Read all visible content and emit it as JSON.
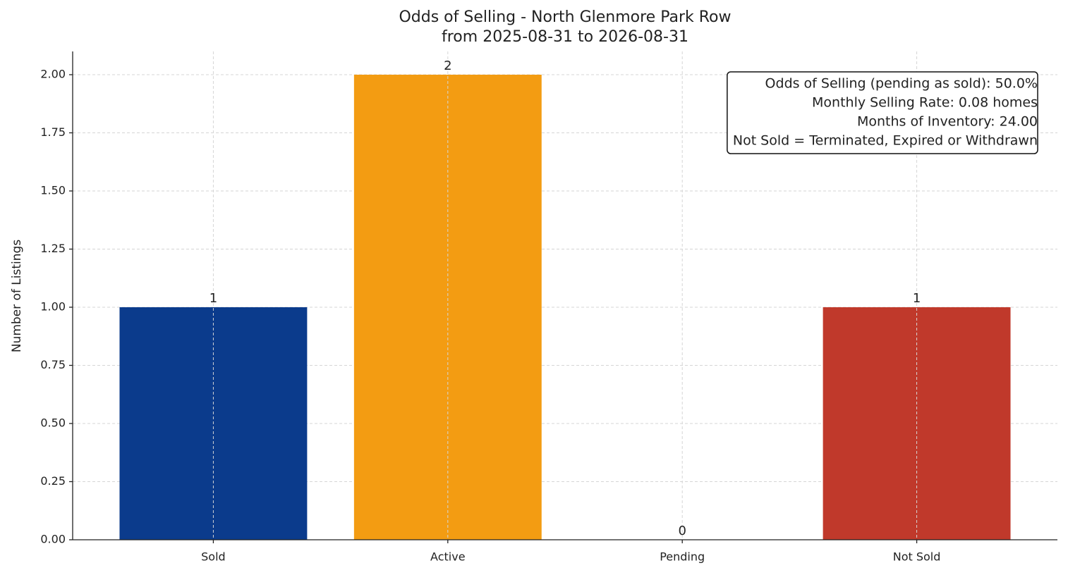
{
  "chart_data": {
    "type": "bar",
    "title": "Odds of Selling - North Glenmore Park Row",
    "subtitle": "from 2025-08-31 to 2026-08-31",
    "y_label": "Number of Listings",
    "categories": [
      "Sold",
      "Active",
      "Pending",
      "Not Sold"
    ],
    "values": [
      1,
      2,
      0,
      1
    ],
    "colors": [
      "#0b3b8c",
      "#f39c12",
      "#2e86c1",
      "#c0392b"
    ],
    "ylim": [
      0,
      2.1
    ],
    "yticks": [
      {
        "value": 0,
        "label": "0.00"
      },
      {
        "value": 0.25,
        "label": "0.25"
      },
      {
        "value": 0.5,
        "label": "0.50"
      },
      {
        "value": 0.75,
        "label": "0.75"
      },
      {
        "value": 1,
        "label": "1.00"
      },
      {
        "value": 1.25,
        "label": "1.25"
      },
      {
        "value": 1.5,
        "label": "1.50"
      },
      {
        "value": 1.75,
        "label": "1.75"
      },
      {
        "value": 2,
        "label": "2.00"
      }
    ],
    "grid": true,
    "annotation": [
      "Odds of Selling (pending as sold): 50.0%",
      "Monthly Selling Rate: 0.08 homes",
      "Months of Inventory: 24.00",
      "Not Sold = Terminated, Expired or Withdrawn"
    ]
  }
}
